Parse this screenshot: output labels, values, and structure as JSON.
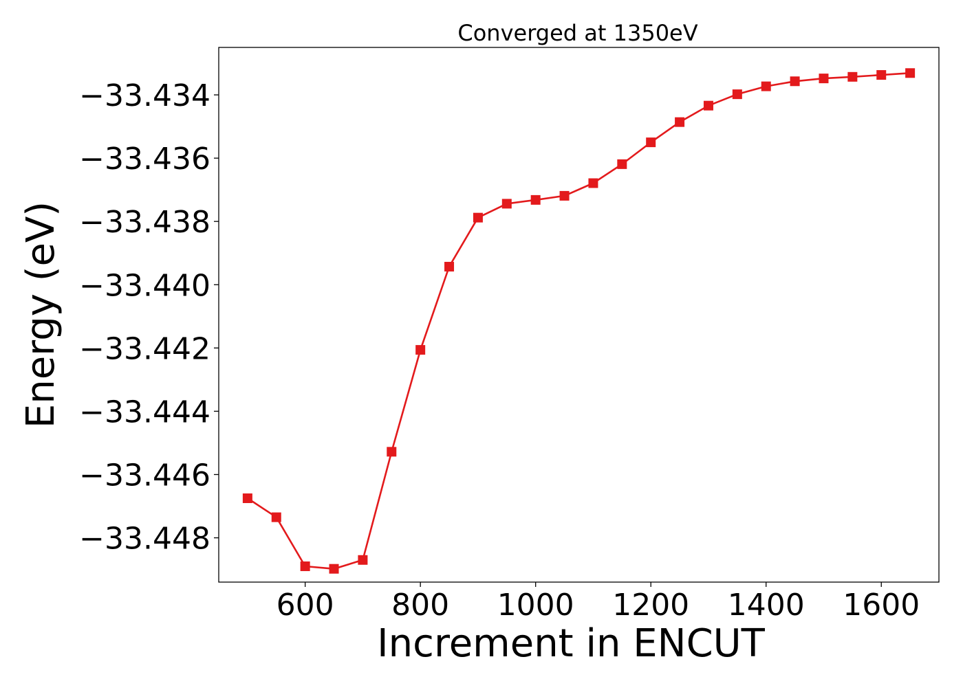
{
  "chart_data": {
    "type": "line",
    "title": "Converged at 1350eV",
    "xlabel": "Increment in ENCUT",
    "ylabel": "Energy (eV)",
    "xlim": [
      450,
      1700
    ],
    "ylim": [
      -33.4494,
      -33.4325
    ],
    "x_ticks": [
      600,
      800,
      1000,
      1200,
      1400,
      1600
    ],
    "x_tick_labels": [
      "600",
      "800",
      "1000",
      "1200",
      "1400",
      "1600"
    ],
    "y_ticks": [
      -33.448,
      -33.446,
      -33.444,
      -33.442,
      -33.44,
      -33.438,
      -33.436,
      -33.434
    ],
    "y_tick_labels": [
      "−33.448",
      "−33.446",
      "−33.444",
      "−33.442",
      "−33.440",
      "−33.438",
      "−33.436",
      "−33.434"
    ],
    "grid": false,
    "series": [
      {
        "color": "#e31a1c",
        "marker": "square",
        "x": [
          500,
          550,
          600,
          650,
          700,
          750,
          800,
          850,
          900,
          950,
          1000,
          1050,
          1100,
          1150,
          1200,
          1250,
          1300,
          1350,
          1400,
          1450,
          1500,
          1550,
          1600,
          1650
        ],
        "y": [
          -33.44675,
          -33.44735,
          -33.4489,
          -33.44898,
          -33.4487,
          -33.44528,
          -33.44206,
          -33.43943,
          -33.43788,
          -33.43744,
          -33.43732,
          -33.43719,
          -33.43679,
          -33.43619,
          -33.4355,
          -33.43486,
          -33.43434,
          -33.43398,
          -33.43373,
          -33.43357,
          -33.43348,
          -33.43343,
          -33.43337,
          -33.43331
        ]
      }
    ]
  }
}
